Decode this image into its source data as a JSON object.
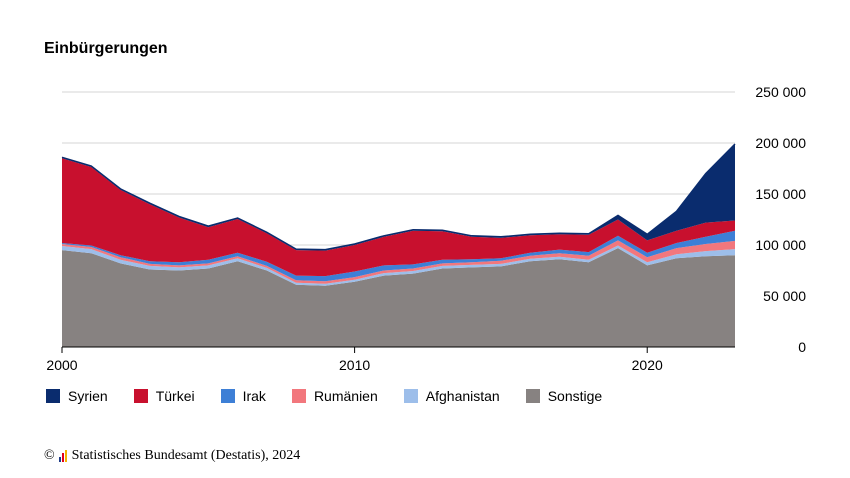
{
  "title": "Einbürgerungen",
  "credit": {
    "copyright_symbol": "©",
    "text": "Statistisches Bundesamt (Destatis), 2024"
  },
  "chart_data": {
    "type": "area",
    "stacked": true,
    "title": "Einbürgerungen",
    "x": [
      2000,
      2001,
      2002,
      2003,
      2004,
      2005,
      2006,
      2007,
      2008,
      2009,
      2010,
      2011,
      2012,
      2013,
      2014,
      2015,
      2016,
      2017,
      2018,
      2019,
      2020,
      2021,
      2022,
      2023
    ],
    "x_ticks": [
      2000,
      2010,
      2020
    ],
    "x_tick_labels": [
      "2000",
      "2010",
      "2020"
    ],
    "ylim": [
      0,
      250000
    ],
    "y_ticks": [
      0,
      50000,
      100000,
      150000,
      200000,
      250000
    ],
    "y_tick_labels": [
      "0",
      "50 000",
      "100 000",
      "150 000",
      "200 000",
      "250 000"
    ],
    "y_axis_side": "right",
    "grid": true,
    "legend_position": "bottom",
    "series": [
      {
        "name": "Sonstige",
        "color": "#878281",
        "values": [
          95000,
          92000,
          82000,
          76000,
          75000,
          77000,
          84000,
          75000,
          61000,
          60000,
          64000,
          70000,
          72000,
          77000,
          78000,
          79000,
          84000,
          86000,
          83000,
          97000,
          80000,
          87000,
          89000,
          90000
        ]
      },
      {
        "name": "Afghanistan",
        "color": "#9dbeea",
        "values": [
          4000,
          4000,
          3500,
          3500,
          3000,
          3000,
          3000,
          2500,
          2000,
          2000,
          2000,
          2500,
          2500,
          2500,
          2500,
          2500,
          2500,
          2500,
          2500,
          2500,
          3000,
          4000,
          5000,
          6000
        ]
      },
      {
        "name": "Rumänien",
        "color": "#f2777d",
        "values": [
          2000,
          2000,
          2500,
          2000,
          2000,
          2000,
          2000,
          2000,
          2500,
          2500,
          2500,
          2500,
          2500,
          2500,
          2500,
          3000,
          3000,
          3500,
          4000,
          5000,
          5000,
          6000,
          7000,
          8000
        ]
      },
      {
        "name": "Irak",
        "color": "#3d7fd6",
        "values": [
          1000,
          1500,
          2000,
          2500,
          3000,
          3500,
          3500,
          4000,
          4500,
          5000,
          5500,
          5000,
          4000,
          3500,
          3000,
          2500,
          3000,
          3500,
          3500,
          4500,
          4500,
          5000,
          7000,
          10000
        ]
      },
      {
        "name": "Türkei",
        "color": "#c8102e",
        "values": [
          83000,
          77000,
          64000,
          56000,
          44000,
          32000,
          33000,
          28000,
          25000,
          25000,
          26000,
          28000,
          33000,
          28000,
          22000,
          20000,
          17000,
          15000,
          17000,
          16000,
          12000,
          12000,
          14000,
          10000
        ]
      },
      {
        "name": "Syrien",
        "color": "#0a2c6e",
        "values": [
          1000,
          1000,
          1000,
          1000,
          1000,
          1000,
          1000,
          1000,
          1000,
          1000,
          1000,
          1000,
          1000,
          1000,
          1000,
          1000,
          1000,
          1000,
          1000,
          4000,
          6000,
          19000,
          48000,
          75000
        ]
      }
    ],
    "legend_order": [
      "Syrien",
      "Türkei",
      "Irak",
      "Rumänien",
      "Afghanistan",
      "Sonstige"
    ]
  }
}
